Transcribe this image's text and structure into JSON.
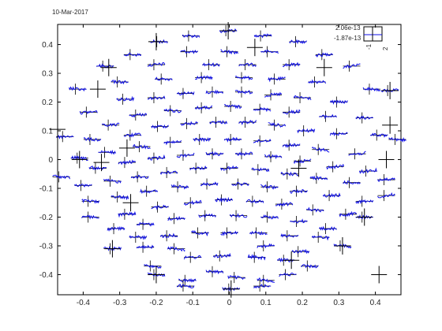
{
  "header": {
    "date_label": "10-Mar-2017"
  },
  "chart_data": {
    "type": "scatter",
    "description_mode": "sensor-layout",
    "title": "",
    "xlabel": "",
    "ylabel": "",
    "xlim": [
      -0.47,
      0.47
    ],
    "ylim": [
      -0.47,
      0.47
    ],
    "xticks": [
      -0.4,
      -0.3,
      -0.2,
      -0.1,
      0,
      0.1,
      0.2,
      0.3,
      0.4
    ],
    "yticks": [
      -0.4,
      -0.3,
      -0.2,
      -0.1,
      0,
      0.1,
      0.2,
      0.3,
      0.4
    ],
    "xtick_labels": [
      "-0.4",
      "-0.3",
      "-0.2",
      "-0.1",
      "0",
      "0.1",
      "0.2",
      "0.3",
      "0.4"
    ],
    "ytick_labels": [
      "-0.4",
      "-0.3",
      "-0.2",
      "-0.1",
      "0",
      "0.1",
      "0.2",
      "0.3",
      "0.4"
    ],
    "grid": false,
    "box": true,
    "legend": {
      "position": "top-right",
      "ymax_label": "2.06e-13",
      "ymin_label": "-1.87e-13",
      "xmin_label": "-1",
      "xmax_label": "2"
    },
    "colors": {
      "trace": "#1010e8",
      "axes": "#000000",
      "label": "#262626"
    },
    "tall_crosses": [
      [
        -0.003,
        0.448
      ],
      [
        -0.47,
        0.105
      ],
      [
        0.44,
        0.24
      ],
      [
        0.44,
        0.12
      ],
      [
        0.43,
        0.0
      ],
      [
        0.19,
        -0.03
      ],
      [
        -0.27,
        -0.15
      ],
      [
        -0.28,
        0.04
      ],
      [
        -0.41,
        0.0
      ],
      [
        -0.36,
        0.245
      ],
      [
        0.41,
        -0.4
      ],
      [
        0.31,
        -0.3
      ],
      [
        -0.32,
        -0.31
      ],
      [
        -0.2,
        -0.4
      ],
      [
        0.005,
        -0.45
      ],
      [
        0.17,
        -0.35
      ],
      [
        0.07,
        0.39
      ],
      [
        -0.33,
        0.32
      ],
      [
        -0.2,
        0.41
      ],
      [
        0.26,
        0.32
      ],
      [
        0.37,
        -0.2
      ],
      [
        -0.35,
        -0.01
      ]
    ],
    "sensors": [
      [
        -0.003,
        0.448
      ],
      [
        -0.105,
        0.43
      ],
      [
        0.092,
        0.43
      ],
      [
        -0.192,
        0.41
      ],
      [
        0.188,
        0.41
      ],
      [
        -0.265,
        0.365
      ],
      [
        -0.11,
        0.375
      ],
      [
        0.0,
        0.375
      ],
      [
        0.11,
        0.375
      ],
      [
        0.26,
        0.365
      ],
      [
        -0.34,
        0.325
      ],
      [
        -0.2,
        0.33
      ],
      [
        -0.05,
        0.33
      ],
      [
        0.05,
        0.33
      ],
      [
        0.17,
        0.33
      ],
      [
        0.335,
        0.325
      ],
      [
        -0.415,
        0.245
      ],
      [
        -0.3,
        0.27
      ],
      [
        -0.18,
        0.28
      ],
      [
        -0.07,
        0.285
      ],
      [
        0.04,
        0.285
      ],
      [
        0.13,
        0.28
      ],
      [
        0.24,
        0.27
      ],
      [
        0.39,
        0.245
      ],
      [
        -0.385,
        0.165
      ],
      [
        -0.285,
        0.21
      ],
      [
        -0.2,
        0.215
      ],
      [
        -0.12,
        0.23
      ],
      [
        -0.04,
        0.235
      ],
      [
        0.04,
        0.235
      ],
      [
        0.12,
        0.225
      ],
      [
        0.2,
        0.215
      ],
      [
        0.3,
        0.2
      ],
      [
        0.44,
        0.24
      ],
      [
        -0.325,
        0.12
      ],
      [
        -0.25,
        0.155
      ],
      [
        -0.155,
        0.17
      ],
      [
        -0.07,
        0.18
      ],
      [
        0.01,
        0.185
      ],
      [
        0.09,
        0.175
      ],
      [
        0.17,
        0.165
      ],
      [
        0.27,
        0.15
      ],
      [
        0.37,
        0.145
      ],
      [
        -0.45,
        0.08
      ],
      [
        -0.375,
        0.07
      ],
      [
        -0.265,
        0.085
      ],
      [
        -0.19,
        0.115
      ],
      [
        -0.11,
        0.125
      ],
      [
        -0.03,
        0.13
      ],
      [
        0.05,
        0.13
      ],
      [
        0.13,
        0.12
      ],
      [
        0.21,
        0.1
      ],
      [
        0.3,
        0.09
      ],
      [
        0.41,
        0.085
      ],
      [
        -0.41,
        0.005
      ],
      [
        -0.335,
        0.025
      ],
      [
        -0.24,
        0.045
      ],
      [
        -0.155,
        0.06
      ],
      [
        -0.075,
        0.07
      ],
      [
        0.01,
        0.07
      ],
      [
        0.09,
        0.065
      ],
      [
        0.17,
        0.05
      ],
      [
        0.25,
        0.035
      ],
      [
        0.35,
        0.02
      ],
      [
        0.46,
        0.07
      ],
      [
        -0.46,
        -0.06
      ],
      [
        -0.36,
        -0.03
      ],
      [
        -0.28,
        -0.01
      ],
      [
        -0.2,
        0.005
      ],
      [
        -0.12,
        0.015
      ],
      [
        -0.04,
        0.02
      ],
      [
        0.04,
        0.02
      ],
      [
        0.12,
        0.01
      ],
      [
        0.2,
        -0.005
      ],
      [
        0.29,
        -0.025
      ],
      [
        0.38,
        -0.04
      ],
      [
        -0.4,
        -0.09
      ],
      [
        -0.32,
        -0.075
      ],
      [
        -0.245,
        -0.06
      ],
      [
        -0.165,
        -0.045
      ],
      [
        -0.085,
        -0.03
      ],
      [
        0.0,
        -0.03
      ],
      [
        0.085,
        -0.035
      ],
      [
        0.165,
        -0.05
      ],
      [
        0.245,
        -0.065
      ],
      [
        0.335,
        -0.08
      ],
      [
        0.43,
        -0.07
      ],
      [
        -0.38,
        -0.145
      ],
      [
        -0.3,
        -0.13
      ],
      [
        -0.22,
        -0.11
      ],
      [
        -0.135,
        -0.095
      ],
      [
        -0.055,
        -0.085
      ],
      [
        0.03,
        -0.085
      ],
      [
        0.11,
        -0.095
      ],
      [
        0.19,
        -0.11
      ],
      [
        0.28,
        -0.125
      ],
      [
        0.37,
        -0.145
      ],
      [
        -0.38,
        -0.2
      ],
      [
        -0.28,
        -0.19
      ],
      [
        -0.19,
        -0.165
      ],
      [
        -0.1,
        -0.15
      ],
      [
        -0.015,
        -0.14
      ],
      [
        0.07,
        -0.145
      ],
      [
        0.15,
        -0.155
      ],
      [
        0.235,
        -0.175
      ],
      [
        0.325,
        -0.19
      ],
      [
        0.43,
        -0.125
      ],
      [
        -0.31,
        -0.24
      ],
      [
        -0.23,
        -0.225
      ],
      [
        -0.145,
        -0.205
      ],
      [
        -0.06,
        -0.195
      ],
      [
        0.025,
        -0.195
      ],
      [
        0.11,
        -0.2
      ],
      [
        0.19,
        -0.215
      ],
      [
        0.27,
        -0.24
      ],
      [
        0.37,
        -0.2
      ],
      [
        -0.25,
        -0.27
      ],
      [
        -0.165,
        -0.265
      ],
      [
        -0.08,
        -0.255
      ],
      [
        0.0,
        -0.255
      ],
      [
        0.08,
        -0.255
      ],
      [
        0.165,
        -0.265
      ],
      [
        0.25,
        -0.27
      ],
      [
        -0.32,
        -0.31
      ],
      [
        -0.23,
        -0.305
      ],
      [
        -0.145,
        -0.31
      ],
      [
        0.1,
        -0.3
      ],
      [
        0.195,
        -0.32
      ],
      [
        0.31,
        -0.3
      ],
      [
        -0.21,
        -0.37
      ],
      [
        -0.1,
        -0.34
      ],
      [
        -0.02,
        -0.335
      ],
      [
        0.075,
        -0.34
      ],
      [
        0.155,
        -0.35
      ],
      [
        0.22,
        -0.37
      ],
      [
        -0.2,
        -0.4
      ],
      [
        -0.115,
        -0.42
      ],
      [
        -0.04,
        -0.39
      ],
      [
        0.02,
        -0.41
      ],
      [
        0.1,
        -0.42
      ],
      [
        0.16,
        -0.4
      ],
      [
        -0.12,
        -0.44
      ],
      [
        0.005,
        -0.45
      ],
      [
        0.09,
        -0.44
      ]
    ]
  }
}
